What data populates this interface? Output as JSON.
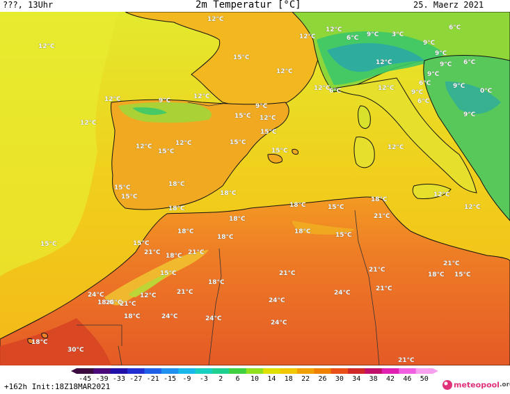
{
  "header": {
    "left": "???, 13Uhr",
    "title": "2m Temperatur [°C]",
    "date": "25. Maerz 2021"
  },
  "footer": {
    "run_info": "+162h Init:18Z18MAR2021",
    "logo_main": "meteopool",
    "logo_tld": ".org"
  },
  "colorscale": {
    "labels": [
      "-45",
      "-39",
      "-33",
      "-27",
      "-21",
      "-15",
      "-9",
      "-3",
      "2",
      "6",
      "10",
      "14",
      "18",
      "22",
      "26",
      "30",
      "34",
      "38",
      "42",
      "46",
      "50"
    ],
    "colors": [
      "#3b0a3f",
      "#4b0a7a",
      "#2010a8",
      "#2030d0",
      "#2060e8",
      "#2090f0",
      "#18b8e8",
      "#18d0c0",
      "#20d090",
      "#40d040",
      "#90e020",
      "#e0e000",
      "#f0c800",
      "#f0a000",
      "#f08000",
      "#e85018",
      "#d02828",
      "#c0106a",
      "#e020b0",
      "#f060e0",
      "#f8a0f0"
    ]
  },
  "legend_colors": {
    "sea_cold": "#e6ec2a",
    "sea_mild": "#f3c51a",
    "land_warm": "#f0a820",
    "land_hot": "#ee8026",
    "sahara": "#e85a28",
    "alps_cold": "#3cc86a",
    "peaks": "#2aa8a8",
    "coast": "#111111"
  },
  "map_labels": [
    {
      "text": "12°C",
      "role": "bay-of-biscay-west"
    },
    {
      "text": "12°C",
      "role": "brittany"
    },
    {
      "text": "12°C",
      "role": "alps-west"
    },
    {
      "text": "6°C",
      "role": "alps-1"
    },
    {
      "text": "9°C",
      "role": "alps-2"
    },
    {
      "text": "3°C",
      "role": "alps-3"
    },
    {
      "text": "6°C",
      "role": "alps-4"
    },
    {
      "text": "9°C",
      "role": "balkan-north"
    },
    {
      "text": "12°C",
      "role": "france-west"
    },
    {
      "text": "15°C",
      "role": "france-central"
    },
    {
      "text": "12°C",
      "role": "france-south"
    },
    {
      "text": "9°C",
      "role": "alps-5"
    },
    {
      "text": "9°C",
      "role": "alps-6"
    },
    {
      "text": "6°C",
      "role": "alps-7"
    },
    {
      "text": "12°C",
      "role": "po-valley"
    },
    {
      "text": "9°C",
      "role": "balkans-1"
    },
    {
      "text": "6°C",
      "role": "balkans-2"
    },
    {
      "text": "9°C",
      "role": "balkans-3"
    },
    {
      "text": "0°C",
      "role": "balkans-peak"
    },
    {
      "text": "12°C",
      "role": "provence"
    },
    {
      "text": "6°C",
      "role": "alpes-maritimes"
    },
    {
      "text": "12°C",
      "role": "tuscany"
    },
    {
      "text": "9°C",
      "role": "adriatic-1"
    },
    {
      "text": "6°C",
      "role": "adriatic-2"
    },
    {
      "text": "12°C",
      "role": "cantabria"
    },
    {
      "text": "9°C",
      "role": "cantabrian-mts"
    },
    {
      "text": "12°C",
      "role": "pyrenees-west"
    },
    {
      "text": "9°C",
      "role": "pyrenees"
    },
    {
      "text": "15°C",
      "role": "ebro"
    },
    {
      "text": "12°C",
      "role": "catalonia"
    },
    {
      "text": "15°C",
      "role": "valencia-north"
    },
    {
      "text": "12°C",
      "role": "atlantic-1"
    },
    {
      "text": "12°C",
      "role": "galicia"
    },
    {
      "text": "15°C",
      "role": "castile"
    },
    {
      "text": "12°C",
      "role": "madrid"
    },
    {
      "text": "15°C",
      "role": "aragon"
    },
    {
      "text": "15°C",
      "role": "balearic"
    },
    {
      "text": "12°C",
      "role": "tyrrhenian"
    },
    {
      "text": "9°C",
      "role": "calabria"
    },
    {
      "text": "15°C",
      "role": "portugal-1"
    },
    {
      "text": "15°C",
      "role": "portugal-2"
    },
    {
      "text": "18°C",
      "role": "la-mancha"
    },
    {
      "text": "18°C",
      "role": "murcia"
    },
    {
      "text": "12°C",
      "role": "sicily"
    },
    {
      "text": "12°C",
      "role": "ionian"
    },
    {
      "text": "18°C",
      "role": "andalusia"
    },
    {
      "text": "18°C",
      "role": "alboran"
    },
    {
      "text": "18°C",
      "role": "algeria-coast"
    },
    {
      "text": "15°C",
      "role": "tunisia-coast"
    },
    {
      "text": "18°C",
      "role": "tunisia"
    },
    {
      "text": "21°C",
      "role": "rif"
    },
    {
      "text": "18°C",
      "role": "algeria-west"
    },
    {
      "text": "18°C",
      "role": "morocco-north"
    },
    {
      "text": "18°C",
      "role": "tell-atlas"
    },
    {
      "text": "15°C",
      "role": "atlas-east"
    },
    {
      "text": "15°C",
      "role": "atlantic-2"
    },
    {
      "text": "15°C",
      "role": "morocco-coast"
    },
    {
      "text": "21°C",
      "role": "rabat"
    },
    {
      "text": "18°C",
      "role": "middle-atlas"
    },
    {
      "text": "21°C",
      "role": "oriental"
    },
    {
      "text": "21°C",
      "role": "sahara-north"
    },
    {
      "text": "21°C",
      "role": "libya-west"
    },
    {
      "text": "15°C",
      "role": "gulf-of-sidra"
    },
    {
      "text": "15°C",
      "role": "high-atlas"
    },
    {
      "text": "18°C",
      "role": "tripoli"
    },
    {
      "text": "21°C",
      "role": "libya-coast"
    },
    {
      "text": "21°C",
      "role": "atlas-south"
    },
    {
      "text": "18°C",
      "role": "figuig"
    },
    {
      "text": "21°C",
      "role": "algeria-plateau"
    },
    {
      "text": "24°C",
      "role": "sahara-west"
    },
    {
      "text": "24°C",
      "role": "souss"
    },
    {
      "text": "18°C",
      "role": "agadir"
    },
    {
      "text": "21°C",
      "role": "anti-atlas"
    },
    {
      "text": "12°C",
      "role": "toubkal"
    },
    {
      "text": "24°C",
      "role": "libya-south"
    },
    {
      "text": "24°C",
      "role": "algeria-south-1"
    },
    {
      "text": "18°C",
      "role": "draa"
    },
    {
      "text": "24°C",
      "role": "tindouf"
    },
    {
      "text": "24°C",
      "role": "algeria-south-2"
    },
    {
      "text": "24°C",
      "role": "algeria-south-3"
    },
    {
      "text": "18°C",
      "role": "canaries"
    },
    {
      "text": "30°C",
      "role": "western-sahara"
    },
    {
      "text": "21°C",
      "role": "sahara-south"
    }
  ]
}
